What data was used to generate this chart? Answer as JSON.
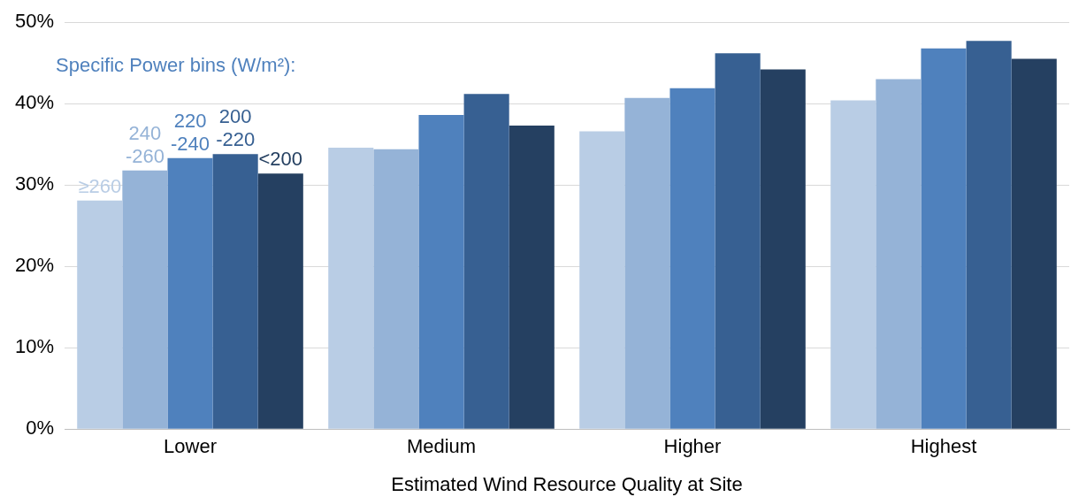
{
  "chart_data": {
    "type": "bar",
    "xlabel": "Estimated Wind Resource Quality at Site",
    "legend_title": "Specific Power bins (W/m²):",
    "categories": [
      "Lower",
      "Medium",
      "Higher",
      "Highest"
    ],
    "series": [
      {
        "name": "≥260",
        "color": "#b9cde5",
        "values": [
          28.1,
          34.6,
          36.6,
          40.4
        ]
      },
      {
        "name": "240-260",
        "color": "#95b3d7",
        "values": [
          31.8,
          34.4,
          40.7,
          43.0
        ]
      },
      {
        "name": "220-240",
        "color": "#4f81bd",
        "values": [
          33.3,
          38.6,
          41.9,
          46.8
        ]
      },
      {
        "name": "200-220",
        "color": "#376092",
        "values": [
          33.8,
          41.2,
          46.2,
          47.7
        ]
      },
      {
        "name": "<200",
        "color": "#254061",
        "values": [
          31.4,
          37.3,
          44.2,
          45.5
        ]
      }
    ],
    "ylim": [
      0,
      50
    ],
    "yticks": [
      {
        "value": 0,
        "label": "0%"
      },
      {
        "value": 10,
        "label": "10%"
      },
      {
        "value": 20,
        "label": "20%"
      },
      {
        "value": 30,
        "label": "30%"
      },
      {
        "value": 40,
        "label": "40%"
      },
      {
        "value": 50,
        "label": "50%"
      }
    ],
    "grid": "y",
    "legend": false
  }
}
